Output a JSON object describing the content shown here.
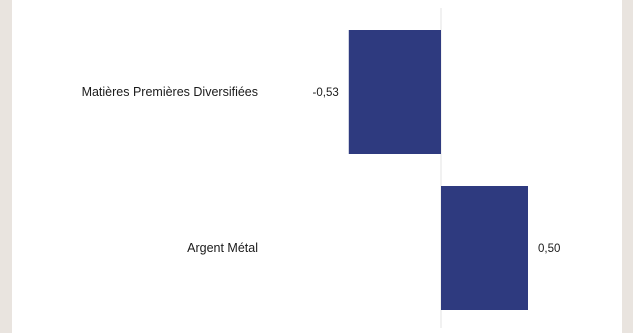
{
  "chart_data": {
    "type": "bar",
    "orientation": "horizontal",
    "categories": [
      "Matières Premières Diversifiées",
      "Argent Métal"
    ],
    "values": [
      -0.53,
      0.5
    ],
    "value_labels": [
      "-0,53",
      "0,50"
    ],
    "title": "",
    "xlabel": "",
    "ylabel": "",
    "xlim": [
      -0.6,
      0.6
    ],
    "grid": false,
    "legend": "none",
    "colors": {
      "bar": "#2e3a7f",
      "zero_line": "#e3e3e3",
      "background": "#e9e4df",
      "card": "#ffffff"
    }
  }
}
